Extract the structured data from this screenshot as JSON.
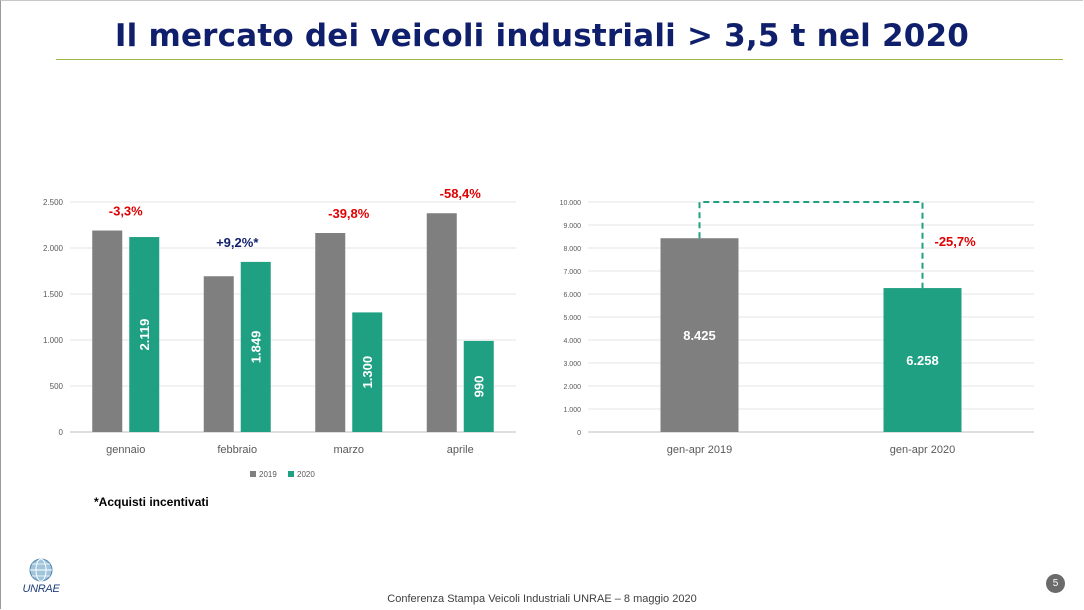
{
  "slide": {
    "title": "Il mercato dei veicoli industriali > 3,5 t nel 2020",
    "footnote": "*Acquisti incentivati",
    "footer": "Conferenza Stampa Veicoli Industriali UNRAE – 8 maggio 2020",
    "page_number": "5",
    "logo_text": "UNRAE"
  },
  "colors": {
    "y2019": "#7f7f7f",
    "y2020": "#1fa083",
    "negative": "#e00000",
    "positive": "#0f1f6b",
    "title": "#0f1f6b"
  },
  "chart_data": [
    {
      "type": "bar",
      "categories": [
        "gennaio",
        "febbraio",
        "marzo",
        "aprile"
      ],
      "series": [
        {
          "name": "2019",
          "values": [
            2190,
            1693,
            2163,
            2378
          ]
        },
        {
          "name": "2020",
          "values": [
            2119,
            1849,
            1300,
            990
          ],
          "labels": [
            "2.119",
            "1.849",
            "1.300",
            "990"
          ]
        }
      ],
      "ylim": [
        0,
        2500
      ],
      "yticks": [
        0,
        500,
        1000,
        1500,
        2000,
        2500
      ],
      "ytick_labels": [
        "0",
        "500",
        "1.000",
        "1.500",
        "2.000",
        "2.500"
      ],
      "annotations": [
        "-3,3%",
        "+9,2%*",
        "-39,8%",
        "-58,4%"
      ],
      "legend": [
        "2019",
        "2020"
      ],
      "legend_position": "bottom",
      "grid": true
    },
    {
      "type": "bar",
      "categories": [
        "gen-apr 2019",
        "gen-apr 2020"
      ],
      "values": [
        8425,
        6258
      ],
      "labels": [
        "8.425",
        "6.258"
      ],
      "ylim": [
        0,
        10000
      ],
      "yticks": [
        0,
        1000,
        2000,
        3000,
        4000,
        5000,
        6000,
        7000,
        8000,
        9000,
        10000
      ],
      "ytick_labels": [
        "0",
        "1.000",
        "2.000",
        "3.000",
        "4.000",
        "5.000",
        "6.000",
        "7.000",
        "8.000",
        "9.000",
        "10.000"
      ],
      "annotation": "-25,7%",
      "grid": true
    }
  ]
}
